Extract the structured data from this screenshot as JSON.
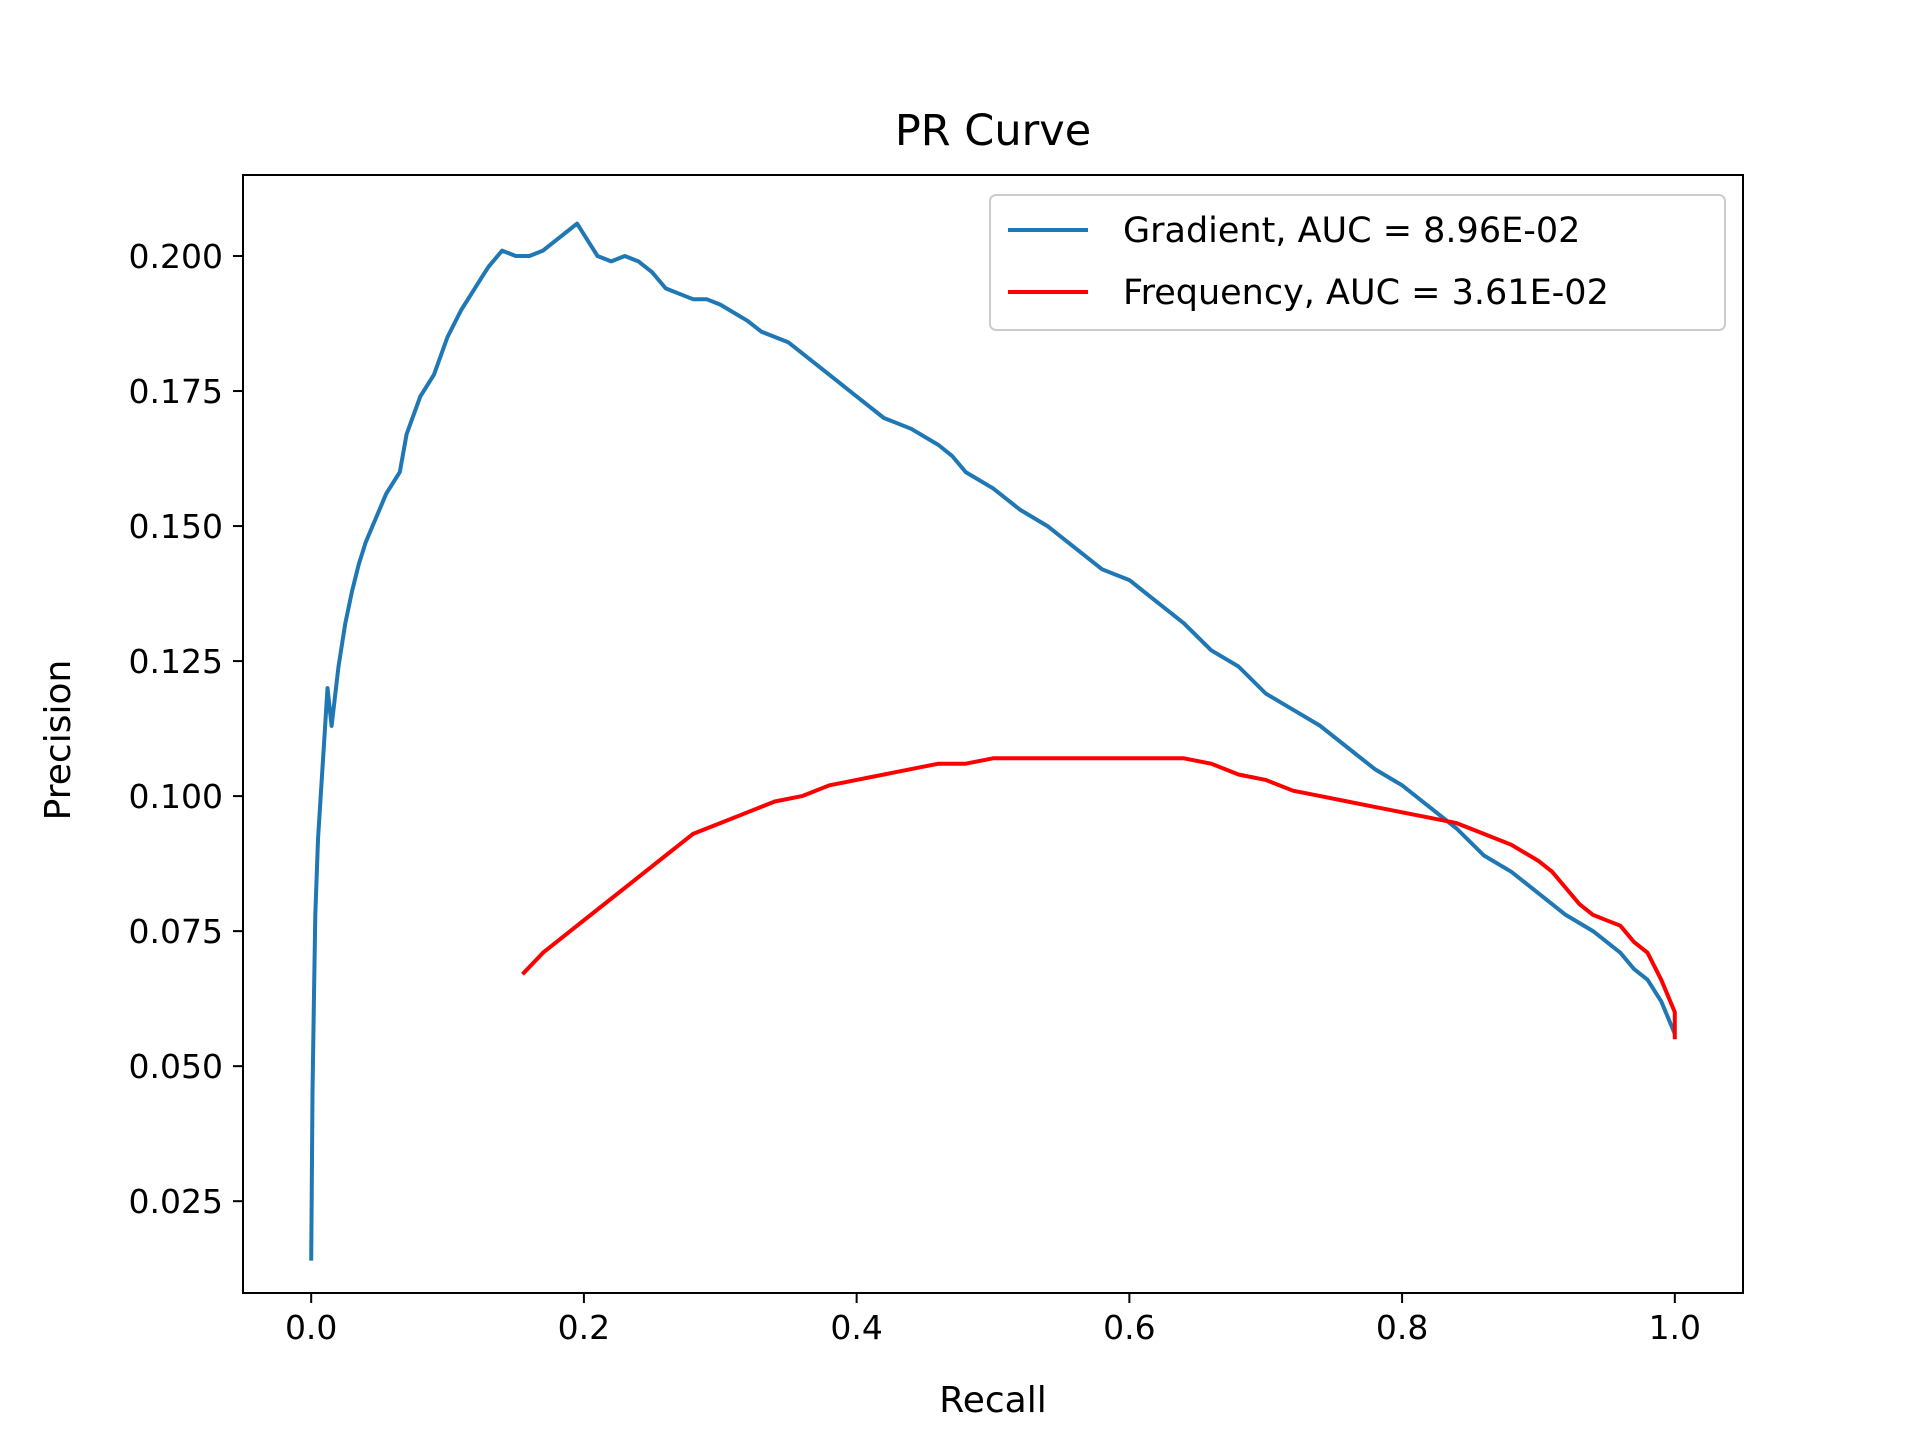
{
  "chart_data": {
    "type": "line",
    "title": "PR Curve",
    "xlabel": "Recall",
    "ylabel": "Precision",
    "xlim": [
      -0.05,
      1.05
    ],
    "ylim": [
      0.008,
      0.215
    ],
    "xticks": [
      0.0,
      0.2,
      0.4,
      0.6,
      0.8,
      1.0
    ],
    "xtick_labels": [
      "0.0",
      "0.2",
      "0.4",
      "0.6",
      "0.8",
      "1.0"
    ],
    "yticks": [
      0.025,
      0.05,
      0.075,
      0.1,
      0.125,
      0.15,
      0.175,
      0.2
    ],
    "ytick_labels": [
      "0.025",
      "0.050",
      "0.075",
      "0.100",
      "0.125",
      "0.150",
      "0.175",
      "0.200"
    ],
    "grid": false,
    "legend_position": "upper right",
    "series": [
      {
        "name": "Gradient, AUC = 8.96E-02",
        "color": "#1f77b4",
        "x": [
          0.0,
          0.001,
          0.002,
          0.003,
          0.005,
          0.007,
          0.01,
          0.012,
          0.015,
          0.02,
          0.025,
          0.03,
          0.035,
          0.04,
          0.045,
          0.05,
          0.055,
          0.06,
          0.065,
          0.07,
          0.08,
          0.09,
          0.1,
          0.11,
          0.12,
          0.125,
          0.13,
          0.14,
          0.15,
          0.16,
          0.17,
          0.18,
          0.19,
          0.195,
          0.2,
          0.21,
          0.22,
          0.23,
          0.24,
          0.25,
          0.26,
          0.27,
          0.28,
          0.29,
          0.3,
          0.32,
          0.33,
          0.35,
          0.36,
          0.38,
          0.4,
          0.42,
          0.44,
          0.46,
          0.47,
          0.48,
          0.5,
          0.51,
          0.52,
          0.54,
          0.55,
          0.56,
          0.58,
          0.6,
          0.62,
          0.64,
          0.66,
          0.68,
          0.7,
          0.72,
          0.74,
          0.76,
          0.78,
          0.8,
          0.82,
          0.84,
          0.86,
          0.88,
          0.9,
          0.92,
          0.94,
          0.96,
          0.97,
          0.98,
          0.99,
          1.0
        ],
        "y": [
          0.014,
          0.045,
          0.062,
          0.078,
          0.092,
          0.1,
          0.112,
          0.12,
          0.113,
          0.124,
          0.132,
          0.138,
          0.143,
          0.147,
          0.15,
          0.153,
          0.156,
          0.158,
          0.16,
          0.167,
          0.174,
          0.178,
          0.185,
          0.19,
          0.194,
          0.196,
          0.198,
          0.201,
          0.2,
          0.2,
          0.201,
          0.203,
          0.205,
          0.206,
          0.204,
          0.2,
          0.199,
          0.2,
          0.199,
          0.197,
          0.194,
          0.193,
          0.192,
          0.192,
          0.191,
          0.188,
          0.186,
          0.184,
          0.182,
          0.178,
          0.174,
          0.17,
          0.168,
          0.165,
          0.163,
          0.16,
          0.157,
          0.155,
          0.153,
          0.15,
          0.148,
          0.146,
          0.142,
          0.14,
          0.136,
          0.132,
          0.127,
          0.124,
          0.119,
          0.116,
          0.113,
          0.109,
          0.105,
          0.102,
          0.098,
          0.094,
          0.089,
          0.086,
          0.082,
          0.078,
          0.075,
          0.071,
          0.068,
          0.066,
          0.062,
          0.056
        ]
      },
      {
        "name": "Frequency, AUC = 3.61E-02",
        "color": "#ff0000",
        "x": [
          0.155,
          0.17,
          0.19,
          0.21,
          0.23,
          0.25,
          0.26,
          0.27,
          0.28,
          0.29,
          0.3,
          0.32,
          0.34,
          0.36,
          0.38,
          0.4,
          0.42,
          0.44,
          0.46,
          0.48,
          0.5,
          0.52,
          0.54,
          0.56,
          0.58,
          0.6,
          0.62,
          0.64,
          0.66,
          0.68,
          0.7,
          0.72,
          0.74,
          0.76,
          0.78,
          0.8,
          0.82,
          0.84,
          0.86,
          0.88,
          0.9,
          0.91,
          0.92,
          0.93,
          0.94,
          0.95,
          0.96,
          0.97,
          0.98,
          0.99,
          1.0,
          1.0
        ],
        "y": [
          0.067,
          0.071,
          0.075,
          0.079,
          0.083,
          0.087,
          0.089,
          0.091,
          0.093,
          0.094,
          0.095,
          0.097,
          0.099,
          0.1,
          0.102,
          0.103,
          0.104,
          0.105,
          0.106,
          0.106,
          0.107,
          0.107,
          0.107,
          0.107,
          0.107,
          0.107,
          0.107,
          0.107,
          0.106,
          0.104,
          0.103,
          0.101,
          0.1,
          0.099,
          0.098,
          0.097,
          0.096,
          0.095,
          0.093,
          0.091,
          0.088,
          0.086,
          0.083,
          0.08,
          0.078,
          0.077,
          0.076,
          0.073,
          0.071,
          0.066,
          0.06,
          0.055
        ]
      }
    ]
  }
}
